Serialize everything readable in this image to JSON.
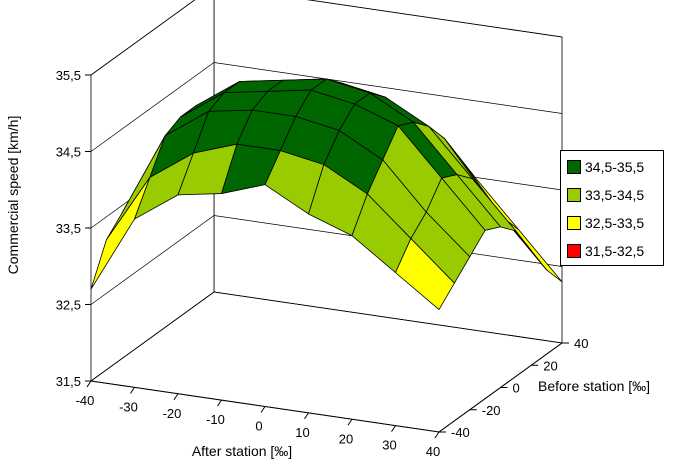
{
  "chart_data": {
    "type": "surface3d",
    "title": "",
    "zlabel": "Commercial speed [km/h]",
    "xlabel": "After station [‰]",
    "ylabel": "Before station [‰]",
    "zlim": [
      31.5,
      35.5
    ],
    "z_ticks": [
      "31,5",
      "32,5",
      "33,5",
      "34,5",
      "35,5"
    ],
    "x_ticks": [
      "-40",
      "-30",
      "-20",
      "-10",
      "0",
      "10",
      "20",
      "30",
      "40"
    ],
    "y_ticks": [
      "-40",
      "-20",
      "0",
      "20",
      "40"
    ],
    "x_values": [
      -40,
      -30,
      -20,
      -10,
      0,
      10,
      20,
      30,
      40
    ],
    "y_values": [
      -40,
      -30,
      -20,
      -10,
      0,
      10,
      20,
      30,
      40
    ],
    "z_grid": [
      [
        32.7,
        33.7,
        34.1,
        34.2,
        34.4,
        34.1,
        33.9,
        33.5,
        33.1
      ],
      [
        33.2,
        34.1,
        34.5,
        34.7,
        34.7,
        34.6,
        34.3,
        33.8,
        33.3
      ],
      [
        33.4,
        34.5,
        34.9,
        35.0,
        35.0,
        34.9,
        34.6,
        34.0,
        33.5
      ],
      [
        33.5,
        34.6,
        35.0,
        35.1,
        35.2,
        35.1,
        34.9,
        34.3,
        33.7
      ],
      [
        33.5,
        34.6,
        35.0,
        35.1,
        35.2,
        35.1,
        34.8,
        34.2,
        33.6
      ],
      [
        33.4,
        34.4,
        34.8,
        34.9,
        35.0,
        34.9,
        34.6,
        34.0,
        33.4
      ],
      [
        33.3,
        34.2,
        34.5,
        34.6,
        34.7,
        34.6,
        34.3,
        33.6,
        33.0
      ],
      [
        33.3,
        33.9,
        34.2,
        34.3,
        34.3,
        34.2,
        33.9,
        33.2,
        32.6
      ],
      [
        33.2,
        33.6,
        33.8,
        33.9,
        33.9,
        33.8,
        33.5,
        32.9,
        32.3
      ]
    ],
    "legend": [
      {
        "label": "34,5-35,5",
        "color": "#006600",
        "min": 34.5,
        "max": 35.5
      },
      {
        "label": "33,5-34,5",
        "color": "#99cc00",
        "min": 33.5,
        "max": 34.5
      },
      {
        "label": "32,5-33,5",
        "color": "#ffff00",
        "min": 32.5,
        "max": 33.5
      },
      {
        "label": "31,5-32,5",
        "color": "#ff0000",
        "min": 31.5,
        "max": 32.5
      }
    ],
    "legend_position": "right",
    "grid": true
  }
}
